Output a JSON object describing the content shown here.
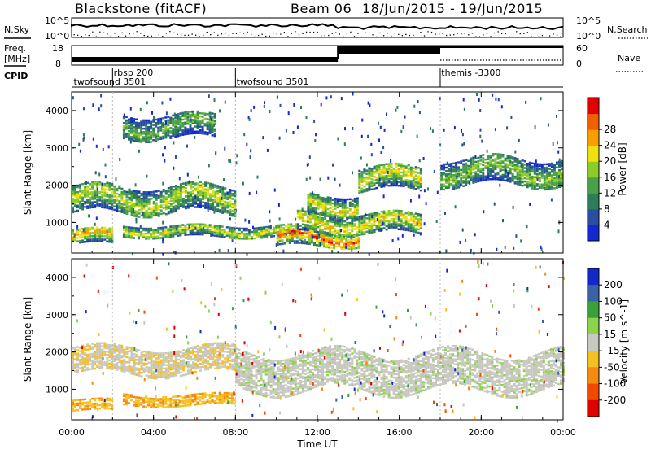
{
  "header": {
    "station": "Blackstone (fitACF)",
    "beam": "Beam 06",
    "date_range": "18/Jun/2015 - 19/Jun/2015"
  },
  "side_labels": {
    "nsky": "N.Sky",
    "nsearch": "N.Search",
    "freq_line1": "Freq.",
    "freq_line2": "[MHz]",
    "nave": "Nave",
    "cpid": "CPID"
  },
  "small_panels": {
    "noise_ticks_left": [
      "10^5",
      "10^0"
    ],
    "noise_ticks_right": [
      "10^5",
      "10^0"
    ],
    "freq_ticks_left": [
      "18",
      "8"
    ],
    "nave_ticks_right": [
      "60",
      "0"
    ]
  },
  "cpid_labels": [
    {
      "text": "twofsound 3501",
      "hour": 0.1,
      "row": 2
    },
    {
      "text": "rbsp 200",
      "hour": 2.05,
      "row": 1
    },
    {
      "text": "twofsound 3501",
      "hour": 8.05,
      "row": 2
    },
    {
      "text": "themis -3300",
      "hour": 18.05,
      "row": 1
    }
  ],
  "cpid_markers_hours": [
    2.0,
    8.0,
    18.0
  ],
  "time_axis": {
    "label": "Time UT",
    "ticks": [
      "00:00",
      "04:00",
      "08:00",
      "12:00",
      "16:00",
      "20:00",
      "00:00"
    ]
  },
  "power_panel": {
    "ylabel": "Slant Range [km]",
    "yticks": [
      "1000",
      "2000",
      "3000",
      "4000"
    ],
    "colorbar_label": "Power [dB]",
    "colorbar_ticks": [
      "4",
      "8",
      "12",
      "16",
      "20",
      "24",
      "28"
    ],
    "colorbar_colors": [
      "#1428d2",
      "#2a4fa0",
      "#2e7d5a",
      "#4aa04a",
      "#8ccc2a",
      "#f0e010",
      "#f5a000",
      "#f06000",
      "#e00000"
    ]
  },
  "velocity_panel": {
    "ylabel": "Slant Range [km]",
    "yticks": [
      "1000",
      "2000",
      "3000",
      "4000"
    ],
    "colorbar_label": "Velocity [m s^-1]",
    "colorbar_ticks": [
      "200",
      "100",
      "50",
      "15",
      "-15",
      "-50",
      "-100",
      "-200"
    ],
    "colorbar_colors": [
      "#1428c8",
      "#3a62a8",
      "#3aa03a",
      "#8cd24a",
      "#c8c8c0",
      "#f5c020",
      "#f58a10",
      "#f04a00",
      "#e00000"
    ]
  },
  "chart_data": {
    "type": "heatmap",
    "x_range_hours": [
      0,
      24
    ],
    "y_range_km": [
      180,
      4500
    ],
    "power_features": [
      {
        "t0": 0,
        "t1": 8,
        "r_center": 1650,
        "r_width": 350,
        "level": 17
      },
      {
        "t0": 0,
        "t1": 2,
        "r_center": 650,
        "r_width": 200,
        "level": 22
      },
      {
        "t0": 2.5,
        "t1": 11,
        "r_center": 800,
        "r_width": 150,
        "level": 18
      },
      {
        "t0": 10,
        "t1": 14,
        "r_center": 600,
        "r_width": 200,
        "level": 26
      },
      {
        "t0": 11,
        "t1": 17,
        "r_center": 1000,
        "r_width": 250,
        "level": 20
      },
      {
        "t0": 11.5,
        "t1": 14,
        "r_center": 1500,
        "r_width": 250,
        "level": 19
      },
      {
        "t0": 14,
        "t1": 17,
        "r_center": 2200,
        "r_width": 300,
        "level": 19
      },
      {
        "t0": 18,
        "t1": 24,
        "r_center": 2400,
        "r_width": 350,
        "level": 15
      },
      {
        "t0": 2.5,
        "t1": 7,
        "r_center": 3600,
        "r_width": 300,
        "level": 13
      }
    ],
    "velocity_features": [
      {
        "t0": 0,
        "t1": 8,
        "r_center": 1800,
        "r_width": 350,
        "class": "-15"
      },
      {
        "t0": 2.5,
        "t1": 8,
        "r_center": 750,
        "r_width": 150,
        "class": "-50"
      },
      {
        "t0": 8,
        "t1": 24,
        "r_center": 1500,
        "r_width": 500,
        "class": "15"
      },
      {
        "t0": 0,
        "t1": 2,
        "r_center": 600,
        "r_width": 150,
        "class": "-50"
      }
    ]
  }
}
